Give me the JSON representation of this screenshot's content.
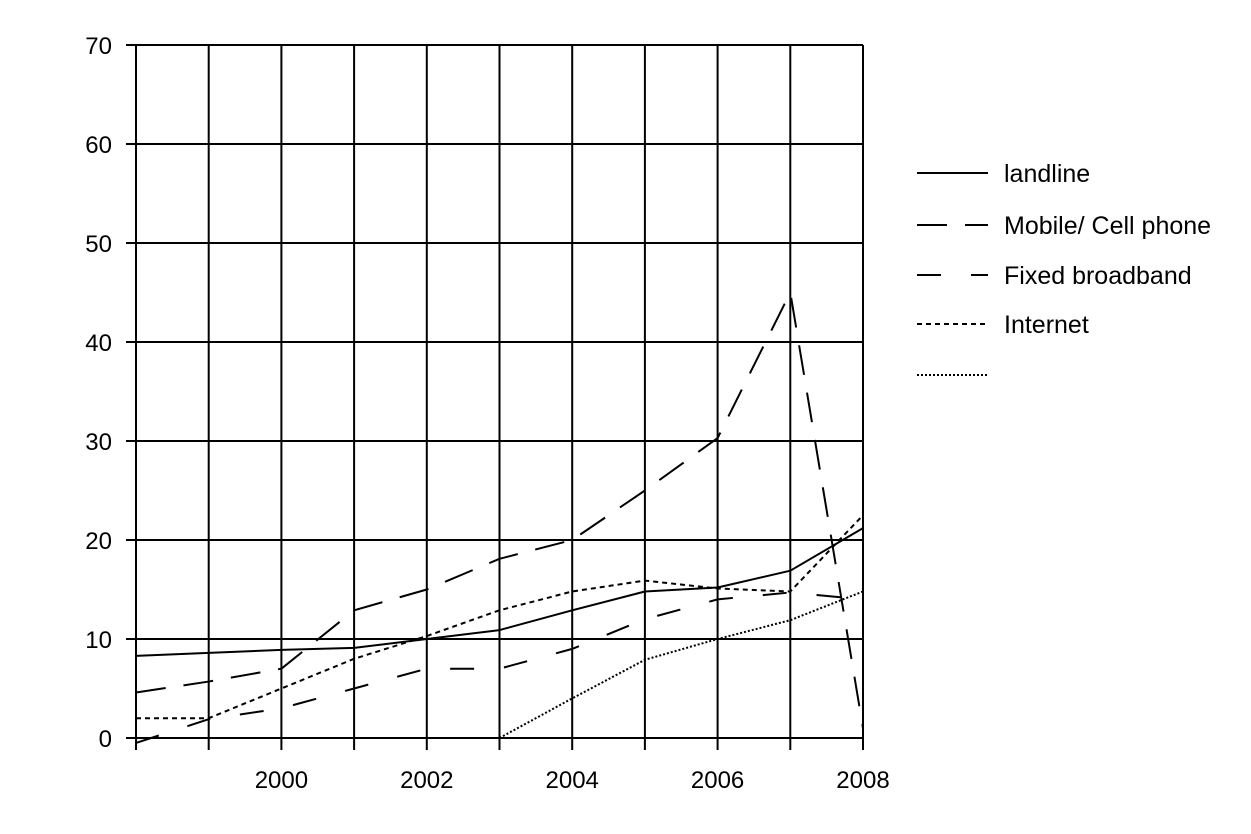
{
  "chart_data": {
    "type": "line",
    "title": "",
    "xlabel": "",
    "ylabel": "",
    "xlim": [
      1998,
      2008
    ],
    "ylim": [
      0,
      70
    ],
    "x_ticks": [
      "2000",
      "2002",
      "2004",
      "2006",
      "2008"
    ],
    "y_ticks": [
      "0",
      "10",
      "20",
      "30",
      "40",
      "50",
      "60",
      "70"
    ],
    "grid": true,
    "legend_position": "right",
    "x": [
      1998,
      1999,
      2000,
      2001,
      2002,
      2003,
      2004,
      2005,
      2006,
      2007,
      2008
    ],
    "series": [
      {
        "name": "landline",
        "style": "solid",
        "points": [
          [
            1998,
            8.3
          ],
          [
            1999,
            8.6
          ],
          [
            2000,
            8.9
          ],
          [
            2001,
            9.1
          ],
          [
            2002,
            10.0
          ],
          [
            2003,
            10.9
          ],
          [
            2004,
            12.9
          ],
          [
            2005,
            14.8
          ],
          [
            2006,
            15.2
          ],
          [
            2007,
            16.9
          ],
          [
            2008,
            21.2
          ]
        ]
      },
      {
        "name": "Mobile/ Cell phone",
        "style": "long-dash",
        "points": [
          [
            1998,
            4.6
          ],
          [
            1999,
            5.7
          ],
          [
            2000,
            7.0
          ],
          [
            2001,
            12.9
          ],
          [
            2002,
            15.0
          ],
          [
            2003,
            18.1
          ],
          [
            2004,
            20.0
          ],
          [
            2005,
            25.0
          ],
          [
            2006,
            30.3
          ],
          [
            2007,
            45.0
          ],
          [
            2008,
            1.0
          ]
        ]
      },
      {
        "name": "Fixed broadband",
        "style": "dash",
        "points": [
          [
            1998,
            -0.5
          ],
          [
            1999,
            1.9
          ],
          [
            2000,
            3.0
          ],
          [
            2001,
            5.0
          ],
          [
            2002,
            7.0
          ],
          [
            2003,
            7.0
          ],
          [
            2004,
            9.0
          ],
          [
            2005,
            12.0
          ],
          [
            2006,
            14.0
          ],
          [
            2007,
            14.7
          ],
          [
            2008,
            14.0
          ]
        ]
      },
      {
        "name": "Internet",
        "style": "short-dash",
        "points": [
          [
            1998,
            2.0
          ],
          [
            1999,
            2.0
          ],
          [
            2000,
            5.0
          ],
          [
            2001,
            8.0
          ],
          [
            2002,
            10.3
          ],
          [
            2003,
            12.9
          ],
          [
            2004,
            14.8
          ],
          [
            2005,
            15.9
          ],
          [
            2006,
            15.1
          ],
          [
            2007,
            14.8
          ],
          [
            2008,
            22.5
          ]
        ]
      },
      {
        "name": "",
        "style": "dotted",
        "points": [
          [
            2003,
            0.0
          ],
          [
            2004,
            4.0
          ],
          [
            2005,
            7.9
          ],
          [
            2006,
            10.0
          ],
          [
            2007,
            11.9
          ],
          [
            2008,
            14.8
          ]
        ]
      }
    ]
  }
}
